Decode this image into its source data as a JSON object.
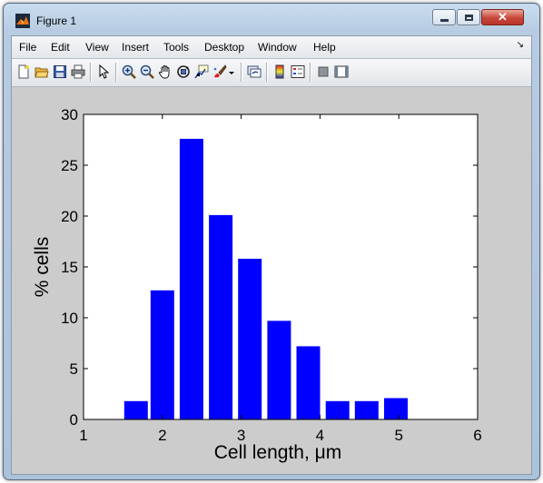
{
  "window": {
    "title": "Figure 1",
    "minimize_label": "minimize",
    "maximize_label": "maximize",
    "close_label": "close"
  },
  "menubar": {
    "items": [
      "File",
      "Edit",
      "View",
      "Insert",
      "Tools",
      "Desktop",
      "Window",
      "Help"
    ]
  },
  "toolbar": {
    "icons": [
      "new-figure-icon",
      "open-file-icon",
      "save-icon",
      "print-icon",
      "edit-plot-arrow-icon",
      "zoom-in-icon",
      "zoom-out-icon",
      "pan-hand-icon",
      "rotate-3d-icon",
      "data-cursor-icon",
      "brush-icon",
      "brush-dropdown-icon",
      "link-plot-icon",
      "colorbar-icon",
      "legend-icon",
      "hide-plot-tools-icon",
      "show-plot-tools-icon"
    ]
  },
  "chart_data": {
    "type": "bar",
    "x": [
      1.6667,
      2.0,
      2.3704,
      2.7407,
      3.1111,
      3.4815,
      3.8519,
      4.2222,
      4.5926,
      4.963
    ],
    "values": [
      1.8,
      12.7,
      27.6,
      20.1,
      15.8,
      9.7,
      7.2,
      1.8,
      1.8,
      2.1
    ],
    "title": "",
    "xlabel": "Cell length, μm",
    "ylabel": "% cells",
    "xlim": [
      1,
      6
    ],
    "ylim": [
      0,
      30
    ],
    "xticks": [
      "1",
      "2",
      "3",
      "4",
      "5",
      "6"
    ],
    "yticks": [
      "0",
      "5",
      "10",
      "15",
      "20",
      "25",
      "30"
    ],
    "bar_color": "#0000ff",
    "grid": false
  }
}
